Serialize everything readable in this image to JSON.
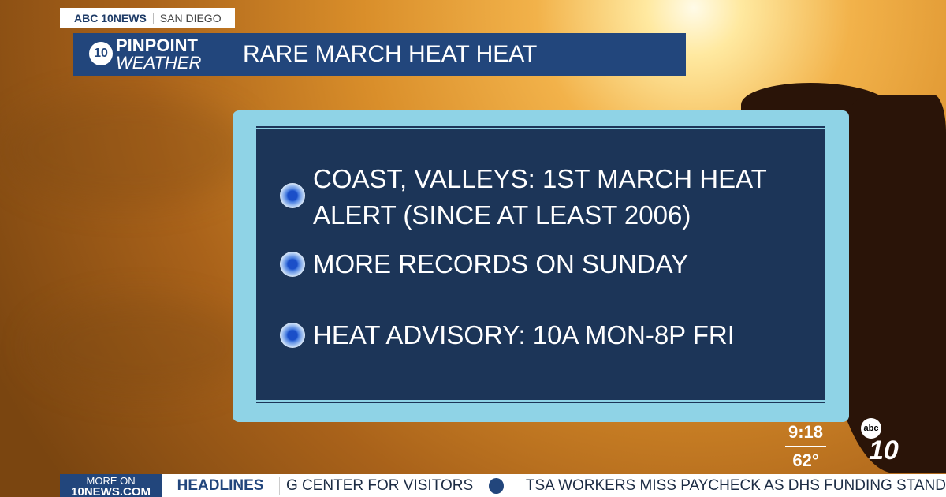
{
  "station_tag": {
    "brand": "ABC 10NEWS",
    "city": "SAN DIEGO"
  },
  "title_bar": {
    "logo_line1": "PINPOINT",
    "logo_line2": "WEATHER",
    "logo_badge": "10",
    "title": "RARE MARCH HEAT HEAT"
  },
  "bullets": [
    "COAST, VALLEYS: 1ST MARCH HEAT ALERT (SINCE AT LEAST 2006)",
    "MORE RECORDS ON SUNDAY",
    "HEAT ADVISORY: 10A MON-8P FRI"
  ],
  "clock": {
    "time": "9:18",
    "temp": "62°"
  },
  "station_logo": {
    "abc": "abc",
    "number": "10"
  },
  "ticker": {
    "more_on": "MORE ON",
    "site": "10NEWS.COM",
    "section": "HEADLINES",
    "stories": [
      "G CENTER FOR VISITORS",
      "TSA WORKERS MISS PAYCHECK AS DHS FUNDING STAND"
    ]
  },
  "colors": {
    "navy": "#22467c",
    "panel": "#1c3558",
    "frame": "#8fd3e6"
  }
}
